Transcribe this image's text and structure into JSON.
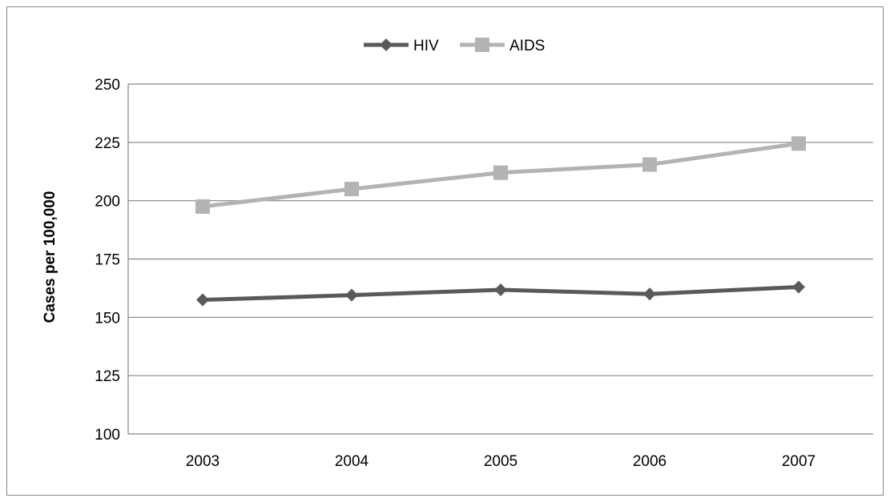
{
  "chart_data": {
    "type": "line",
    "title": "",
    "xlabel": "",
    "ylabel": "Cases per 100,000",
    "categories": [
      "2003",
      "2004",
      "2005",
      "2006",
      "2007"
    ],
    "ylim": [
      100,
      250
    ],
    "yticks": [
      100,
      125,
      150,
      175,
      200,
      225,
      250
    ],
    "grid": true,
    "legend_position": "top-center",
    "series": [
      {
        "name": "HIV",
        "values": [
          157.5,
          159.5,
          161.8,
          160.0,
          163.0
        ],
        "color": "#595959",
        "marker": "diamond"
      },
      {
        "name": "AIDS",
        "values": [
          197.5,
          205.0,
          212.0,
          215.5,
          224.5
        ],
        "color": "#b3b3b3",
        "marker": "square"
      }
    ]
  }
}
